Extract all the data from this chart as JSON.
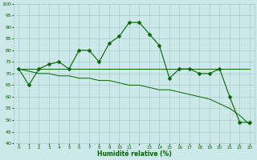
{
  "x": [
    0,
    1,
    2,
    3,
    4,
    5,
    6,
    7,
    8,
    9,
    10,
    11,
    12,
    13,
    14,
    15,
    16,
    17,
    18,
    19,
    20,
    21,
    22,
    23
  ],
  "y_main": [
    72,
    65,
    72,
    74,
    75,
    72,
    80,
    80,
    75,
    83,
    86,
    92,
    92,
    87,
    82,
    68,
    72,
    72,
    70,
    70,
    72,
    60,
    49,
    49
  ],
  "y_flat": [
    72,
    72,
    72,
    72,
    72,
    72,
    72,
    72,
    72,
    72,
    72,
    72,
    72,
    72,
    72,
    72,
    72,
    72,
    72,
    72,
    72,
    72,
    72,
    72
  ],
  "y_diag": [
    72,
    71,
    70,
    70,
    69,
    69,
    68,
    68,
    67,
    67,
    66,
    65,
    65,
    64,
    63,
    63,
    62,
    61,
    60,
    59,
    57,
    55,
    52,
    48
  ],
  "xlabel": "Humidité relative (%)",
  "bg_color": "#cce8e8",
  "grid_color": "#aacccc",
  "line_color": "#006600",
  "ylim": [
    40,
    100
  ],
  "xlim": [
    -0.5,
    23.5
  ],
  "yticks": [
    40,
    45,
    50,
    55,
    60,
    65,
    70,
    75,
    80,
    85,
    90,
    95,
    100
  ],
  "xticks": [
    0,
    1,
    2,
    3,
    4,
    5,
    6,
    7,
    8,
    9,
    10,
    11,
    13,
    14,
    15,
    16,
    17,
    18,
    19,
    20,
    21,
    22,
    23
  ],
  "xtick_labels": [
    "0",
    "1",
    "2",
    "3",
    "4",
    "5",
    "6",
    "7",
    "8",
    "9",
    "1011",
    "",
    "13",
    "14",
    "1516",
    "",
    "17",
    "1819",
    "",
    "20",
    "2122",
    "",
    "23"
  ]
}
